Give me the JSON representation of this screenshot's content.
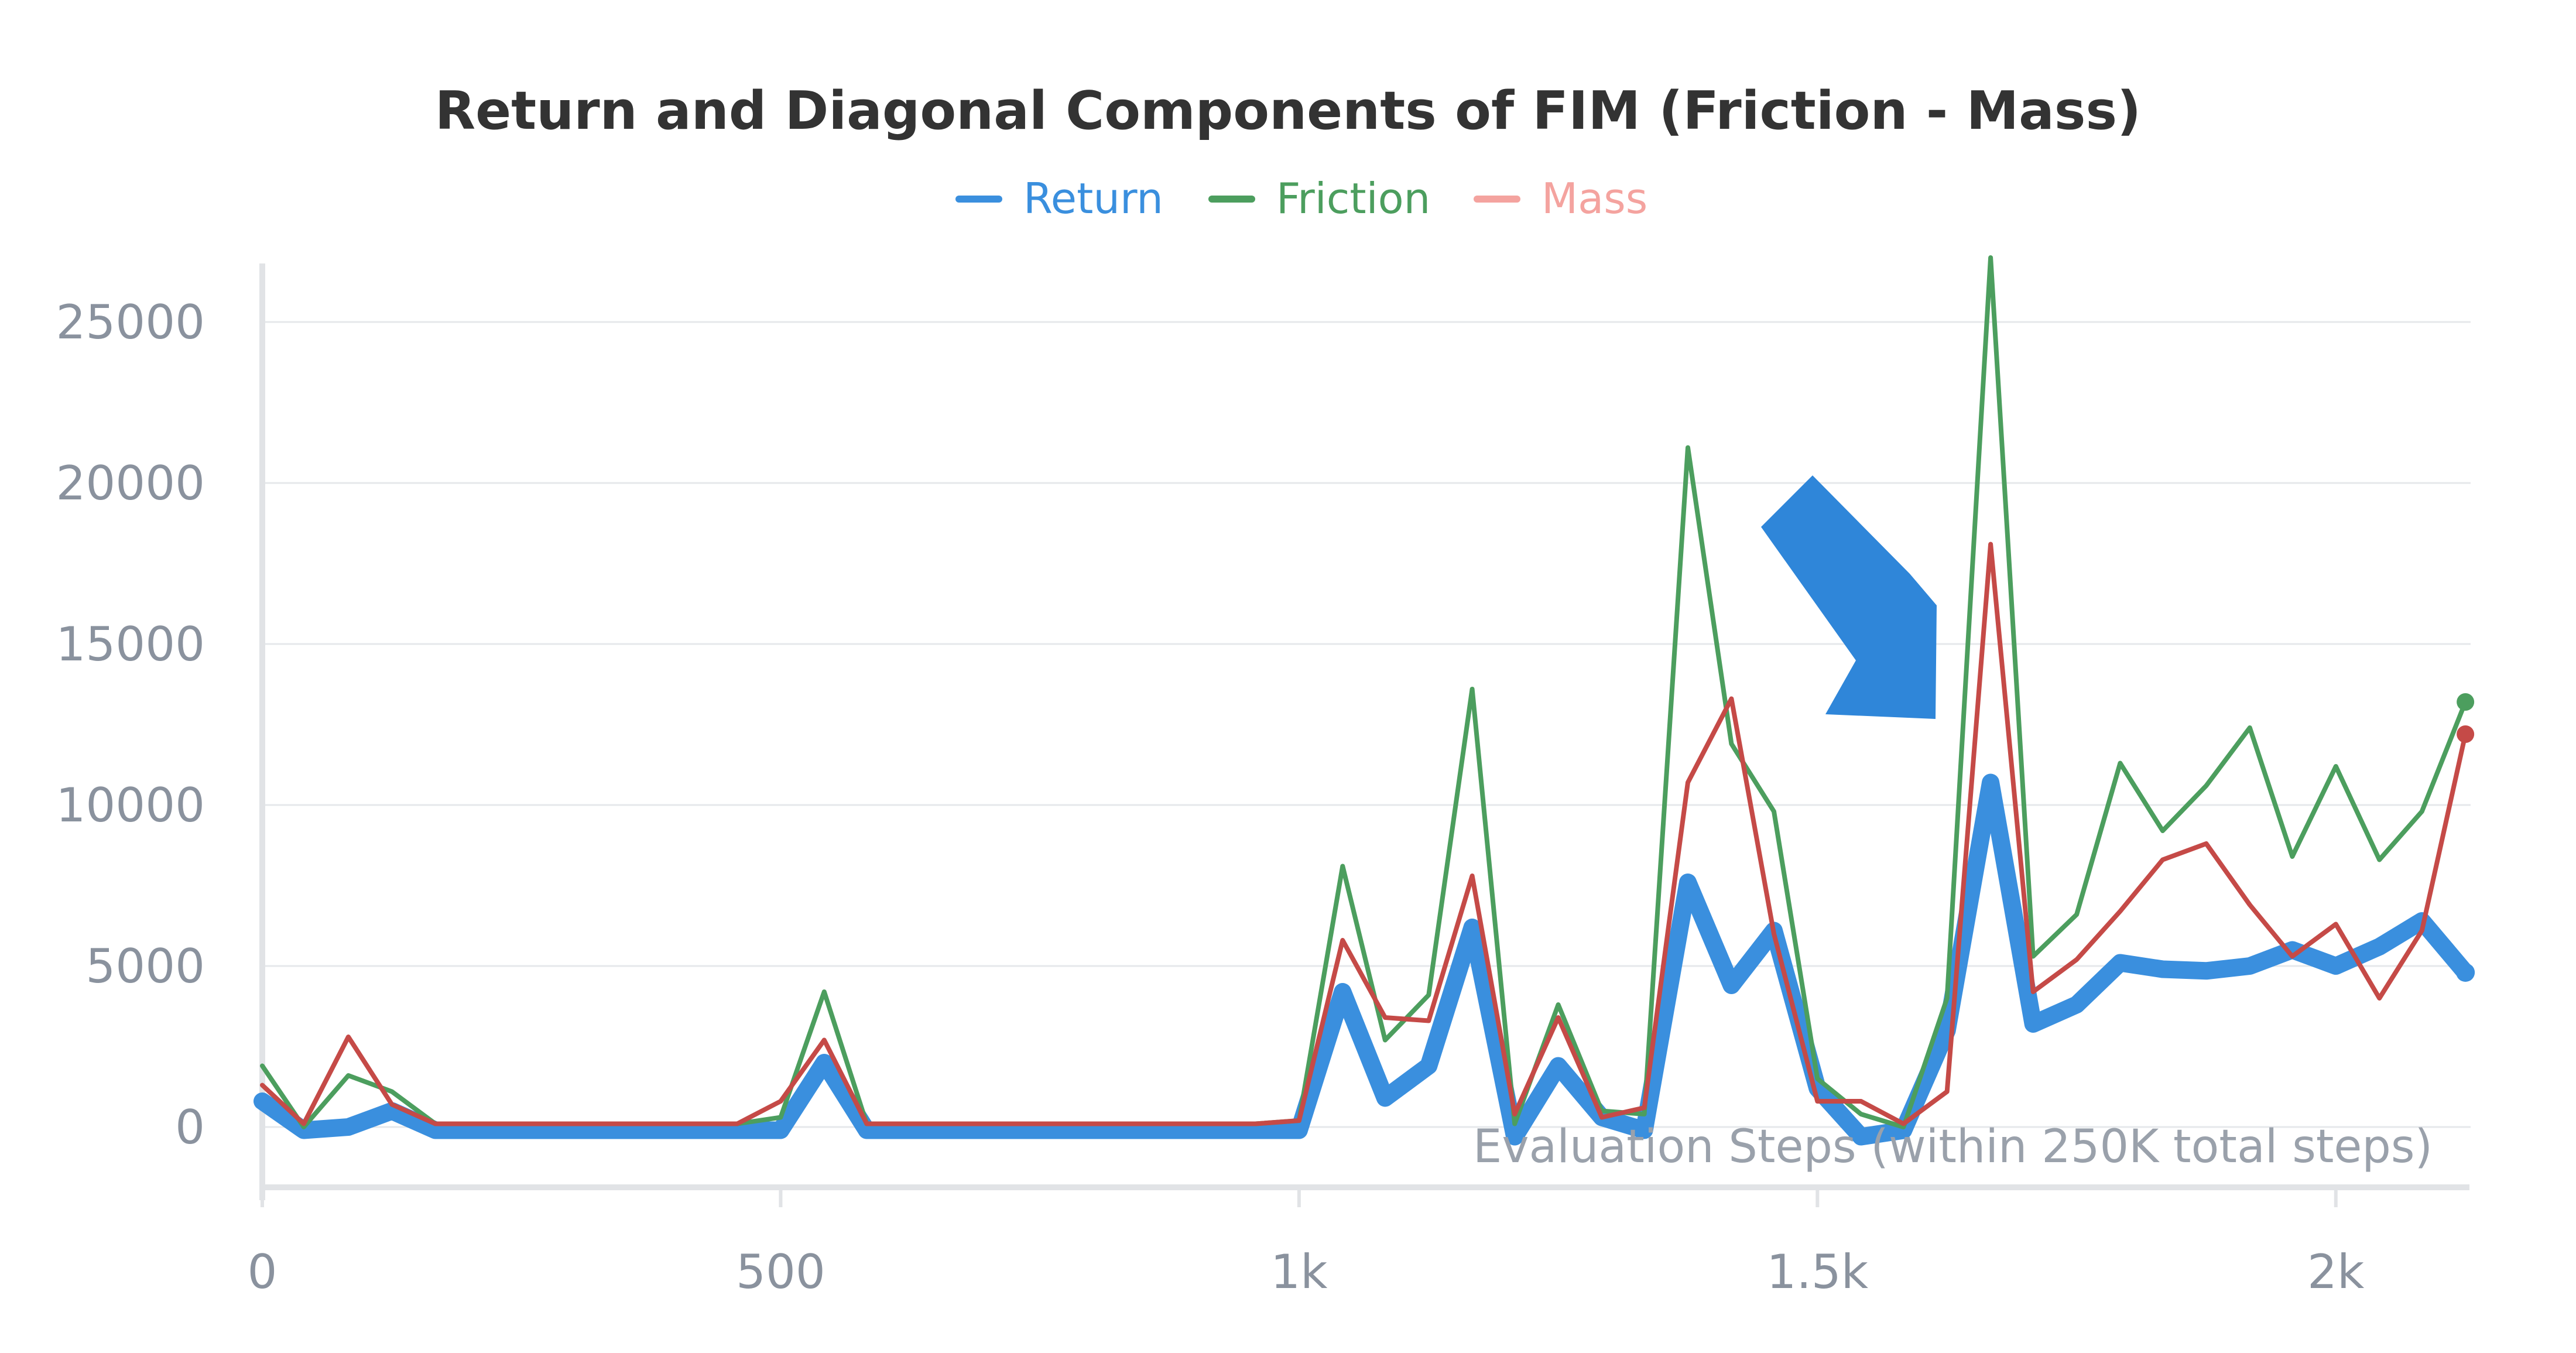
{
  "colors": {
    "Return": "#3a8fde",
    "Friction": "#4c9e5e",
    "Mass": "#c54a47",
    "MassLegend": "#f4a39f",
    "arrow": "#2f86d9"
  },
  "chart_data": {
    "type": "line",
    "title": "Return and Diagonal Components of FIM (Friction - Mass)",
    "xlabel": "Evaluation Steps (within 250K total steps)",
    "ylabel": "",
    "xlim": [
      0,
      2130
    ],
    "ylim": [
      -2000,
      27500
    ],
    "xticks": [
      0,
      500,
      1000,
      1500,
      2000
    ],
    "xtick_labels": [
      "0",
      "500",
      "1k",
      "1.5k",
      "2k"
    ],
    "yticks": [
      0,
      5000,
      10000,
      15000,
      20000,
      25000
    ],
    "ytick_labels": [
      "0",
      "5000",
      "10000",
      "15000",
      "20000",
      "25000"
    ],
    "grid": true,
    "legend": {
      "position": "top-center",
      "entries": [
        "Return",
        "Friction",
        "Mass"
      ]
    },
    "x": [
      0,
      40,
      83,
      125,
      167,
      208,
      250,
      292,
      333,
      375,
      417,
      458,
      500,
      542,
      583,
      625,
      667,
      708,
      750,
      792,
      833,
      875,
      917,
      958,
      1000,
      1042,
      1083,
      1125,
      1167,
      1208,
      1250,
      1292,
      1333,
      1375,
      1417,
      1458,
      1500,
      1542,
      1583,
      1625,
      1667,
      1708,
      1750,
      1792,
      1833,
      1875,
      1917,
      1958,
      2000,
      2042,
      2083,
      2125
    ],
    "series": [
      {
        "name": "Return",
        "values": [
          800,
          -100,
          0,
          500,
          -100,
          -100,
          -100,
          -100,
          -100,
          -100,
          -100,
          -100,
          -100,
          2000,
          -100,
          -100,
          -100,
          -100,
          -100,
          -100,
          -100,
          -100,
          -100,
          -100,
          -100,
          4200,
          900,
          1900,
          6200,
          -300,
          1900,
          300,
          -100,
          7600,
          4400,
          6100,
          1200,
          -300,
          -100,
          3000,
          10700,
          3200,
          3800,
          5100,
          4900,
          4850,
          5000,
          5500,
          5000,
          5600,
          6400,
          4800
        ]
      },
      {
        "name": "Friction",
        "values": [
          1900,
          0,
          1600,
          1100,
          100,
          100,
          100,
          100,
          100,
          100,
          100,
          100,
          300,
          4200,
          100,
          100,
          100,
          100,
          100,
          100,
          100,
          100,
          100,
          100,
          200,
          8100,
          2700,
          4100,
          13600,
          100,
          3800,
          500,
          400,
          21100,
          11900,
          9800,
          1500,
          400,
          0,
          4000,
          27000,
          5300,
          6600,
          11300,
          9200,
          10600,
          12400,
          8400,
          11200,
          8300,
          9800,
          13200
        ]
      },
      {
        "name": "Mass",
        "values": [
          1300,
          100,
          2800,
          700,
          100,
          100,
          100,
          100,
          100,
          100,
          100,
          100,
          800,
          2700,
          100,
          100,
          100,
          100,
          100,
          100,
          100,
          100,
          100,
          100,
          200,
          5800,
          3400,
          3300,
          7800,
          400,
          3400,
          300,
          600,
          10700,
          13300,
          6000,
          800,
          800,
          100,
          1100,
          18100,
          4200,
          5200,
          6700,
          8300,
          8800,
          6900,
          5300,
          6300,
          4000,
          6100,
          12200
        ]
      }
    ]
  }
}
